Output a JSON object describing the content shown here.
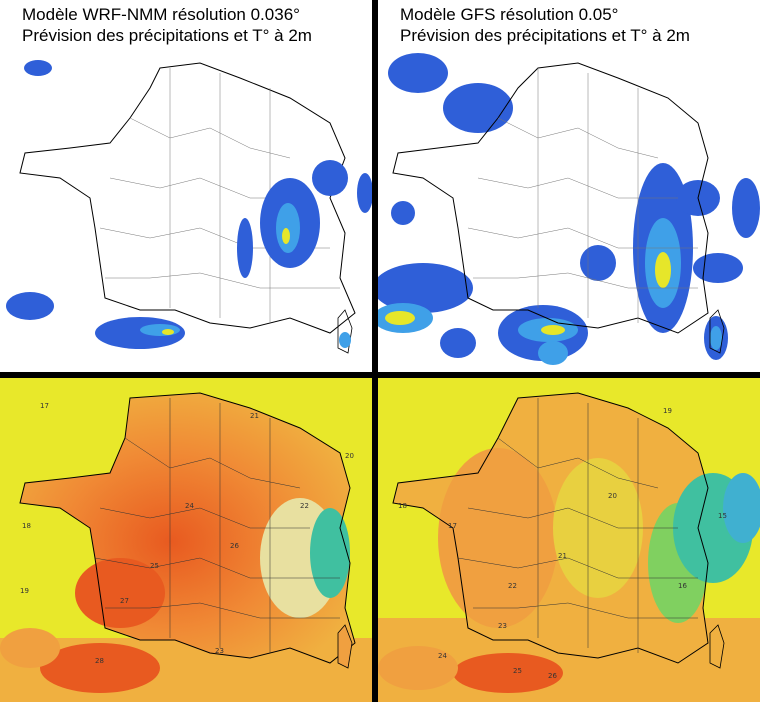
{
  "panels": {
    "wrf": {
      "title_line1": "Modèle WRF-NMM résolution 0.036°",
      "title_line2": "Prévision des précipitations et T° à 2m"
    },
    "gfs": {
      "title_line1": "Modèle GFS résolution 0.05°",
      "title_line2": "Prévision des précipitations et T° à 2m"
    }
  },
  "temperature_labels": {
    "wrf": [
      "17",
      "18",
      "19",
      "20",
      "21",
      "22",
      "23",
      "24",
      "25",
      "26",
      "27",
      "28"
    ],
    "gfs": [
      "15",
      "16",
      "17",
      "18",
      "19",
      "20",
      "21",
      "22",
      "23",
      "24",
      "25",
      "26"
    ]
  },
  "colors": {
    "precip_light": "#2f5fd8",
    "precip_mid": "#3fa0e8",
    "precip_heavy": "#e6e62a",
    "temp_cool": "#e8e82a",
    "temp_warm": "#f0a040",
    "temp_hot": "#e85a20",
    "temp_cold": "#40c0a0",
    "divider": "#000000"
  }
}
